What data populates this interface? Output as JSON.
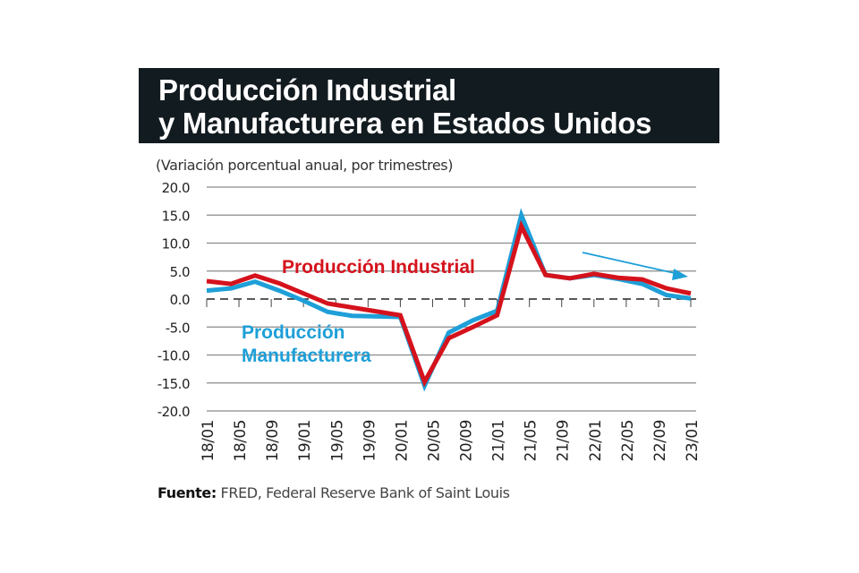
{
  "title_line1": "Producción Industrial",
  "title_line2": "y Manufacturera en Estados Unidos",
  "subtitle": "(Variación porcentual anual, por trimestres)",
  "source_label": "Fuente:",
  "source_text": " FRED, Federal Reserve Bank of Saint Louis",
  "colors": {
    "industrial": "#d5121c",
    "manufacturera": "#1e9fd8",
    "title_bg": "#121b20"
  },
  "chart_data": {
    "type": "line",
    "title": "Producción Industrial y Manufacturera en Estados Unidos",
    "subtitle": "(Variación porcentual anual, por trimestres)",
    "ylim": [
      -20,
      20
    ],
    "yticks": [
      "20.0",
      "15.0",
      "10.0",
      "5.0",
      "0.0",
      "-5.0",
      "-10.0",
      "-15.0",
      "-20.0"
    ],
    "ytick_values": [
      20,
      15,
      10,
      5,
      0,
      -5,
      -10,
      -15,
      -20
    ],
    "xtick_labels": [
      "18/01",
      "18/05",
      "18/09",
      "19/01",
      "19/05",
      "19/09",
      "20/01",
      "20/05",
      "20/09",
      "21/01",
      "21/05",
      "21/09",
      "22/01",
      "22/05",
      "22/09",
      "23/01"
    ],
    "grid": true,
    "zero_line": "dashed",
    "x": [
      "2018-01",
      "2018-04",
      "2018-07",
      "2018-10",
      "2019-01",
      "2019-04",
      "2019-07",
      "2019-10",
      "2020-01",
      "2020-04",
      "2020-07",
      "2020-10",
      "2021-01",
      "2021-04",
      "2021-07",
      "2021-10",
      "2022-01",
      "2022-04",
      "2022-07",
      "2022-10",
      "2023-01"
    ],
    "series": [
      {
        "name": "Producción Industrial",
        "color": "#d5121c",
        "values": [
          3.2,
          2.7,
          4.2,
          2.8,
          1.0,
          -0.8,
          -1.5,
          -2.2,
          -2.9,
          -14.8,
          -7.0,
          -5.0,
          -2.9,
          13.0,
          4.3,
          3.7,
          4.5,
          3.8,
          3.5,
          1.9,
          1.0
        ]
      },
      {
        "name": "Producción Manufacturera",
        "color": "#1e9fd8",
        "values": [
          1.5,
          1.9,
          3.1,
          1.5,
          -0.3,
          -2.3,
          -3.0,
          -3.1,
          -3.2,
          -15.5,
          -6.0,
          -3.8,
          -2.1,
          15.0,
          4.3,
          3.7,
          4.3,
          3.6,
          2.7,
          0.7,
          0.1
        ]
      }
    ],
    "legend_labels": {
      "industrial": "Producción Industrial",
      "manufacturera_line1": "Producción",
      "manufacturera_line2": "Manufacturera"
    },
    "annotation": "downward-trend-arrow"
  }
}
